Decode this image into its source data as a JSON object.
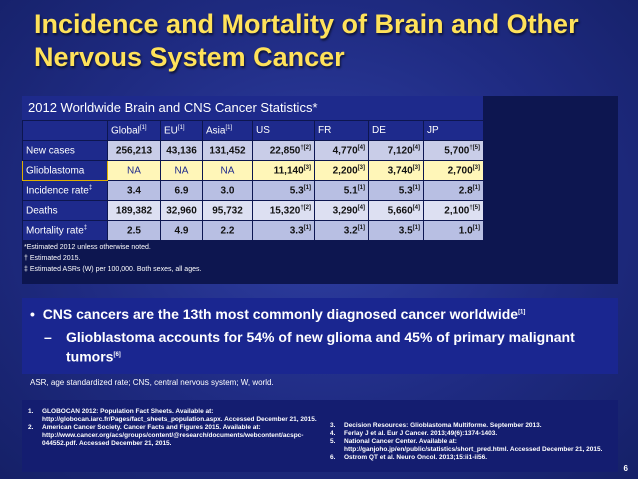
{
  "title": "Incidence and Mortality of Brain and Other Nervous System Cancer",
  "table": {
    "heading": "2012 Worldwide Brain and CNS Cancer Statistics*",
    "columns": [
      "Global",
      "EU",
      "Asia",
      "US",
      "FR",
      "DE",
      "JP"
    ],
    "column_refs": [
      "[1]",
      "[1]",
      "[1]",
      "",
      "",
      "",
      ""
    ],
    "rows": [
      {
        "label": "New cases",
        "label_sup": "",
        "cells": [
          {
            "v": "256,213",
            "s": ""
          },
          {
            "v": "43,136",
            "s": ""
          },
          {
            "v": "131,452",
            "s": ""
          },
          {
            "v": "22,850",
            "s": "†[2]"
          },
          {
            "v": "4,770",
            "s": "[4]"
          },
          {
            "v": "7,120",
            "s": "[4]"
          },
          {
            "v": "5,700",
            "s": "†[5]"
          }
        ]
      },
      {
        "label": "Glioblastoma",
        "label_sup": "",
        "cells": [
          {
            "v": "NA",
            "s": ""
          },
          {
            "v": "NA",
            "s": ""
          },
          {
            "v": "NA",
            "s": ""
          },
          {
            "v": "11,140",
            "s": "[3]"
          },
          {
            "v": "2,200",
            "s": "[3]"
          },
          {
            "v": "3,740",
            "s": "[3]"
          },
          {
            "v": "2,700",
            "s": "[3]"
          }
        ]
      },
      {
        "label": "Incidence rate",
        "label_sup": "‡",
        "cells": [
          {
            "v": "3.4",
            "s": ""
          },
          {
            "v": "6.9",
            "s": ""
          },
          {
            "v": "3.0",
            "s": ""
          },
          {
            "v": "5.3",
            "s": "[1]"
          },
          {
            "v": "5.1",
            "s": "[1]"
          },
          {
            "v": "5.3",
            "s": "[1]"
          },
          {
            "v": "2.8",
            "s": "[1]"
          }
        ]
      },
      {
        "label": "Deaths",
        "label_sup": "",
        "cells": [
          {
            "v": "189,382",
            "s": ""
          },
          {
            "v": "32,960",
            "s": ""
          },
          {
            "v": "95,732",
            "s": ""
          },
          {
            "v": "15,320",
            "s": "†[2]"
          },
          {
            "v": "3,290",
            "s": "[4]"
          },
          {
            "v": "5,660",
            "s": "[4]"
          },
          {
            "v": "2,100",
            "s": "†[5]"
          }
        ]
      },
      {
        "label": "Mortality rate",
        "label_sup": "‡",
        "cells": [
          {
            "v": "2.5",
            "s": ""
          },
          {
            "v": "4.9",
            "s": ""
          },
          {
            "v": "2.2",
            "s": ""
          },
          {
            "v": "3.3",
            "s": "[1]"
          },
          {
            "v": "3.2",
            "s": "[1]"
          },
          {
            "v": "3.5",
            "s": "[1]"
          },
          {
            "v": "1.0",
            "s": "[1]"
          }
        ]
      }
    ],
    "footnotes": [
      "*Estimated 2012 unless otherwise noted.",
      "† Estimated 2015.",
      "‡ Estimated ASRs (W) per 100,000. Both sexes, all ages."
    ]
  },
  "bullets": {
    "b1": "CNS cancers are the 13th most commonly diagnosed cancer worldwide",
    "b1_ref": "[1]",
    "b2": "Glioblastoma accounts for 54% of new glioma and 45% of primary malignant tumors",
    "b2_ref": "[6]"
  },
  "abbreviations": "ASR, age standardized rate; CNS, central nervous system; W, world.",
  "references_left": [
    {
      "n": "1.",
      "t": "GLOBOCAN 2012: Population Fact Sheets. Available at: http://globocan.iarc.fr/Pages/fact_sheets_population.aspx. Accessed December 21, 2015."
    },
    {
      "n": "2.",
      "t": "American Cancer Society. Cancer Facts and Figures 2015. Available at: http://www.cancer.org/acs/groups/content/@research/documents/webcontent/acspc-044552.pdf. Accessed December 21, 2015."
    }
  ],
  "references_right": [
    {
      "n": "3.",
      "t": "Decision Resources: Glioblastoma Multiforme. September 2013."
    },
    {
      "n": "4.",
      "t": "Ferlay J et al. Eur J Cancer. 2013;49(6):1374-1403."
    },
    {
      "n": "5.",
      "t": "National Cancer Center. Available at: http://ganjoho.jp/en/public/statistics/short_pred.html. Accessed December 21, 2015."
    },
    {
      "n": "6.",
      "t": "Ostrom QT et al. Neuro Oncol. 2013;15:ii1-ii56."
    }
  ],
  "page_number": "6"
}
